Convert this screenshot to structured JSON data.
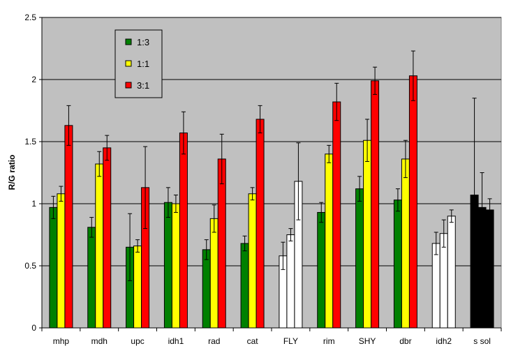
{
  "chart_data": {
    "type": "bar",
    "title": "",
    "xlabel": "",
    "ylabel": "R/G ratio",
    "ylim": [
      0,
      2.5
    ],
    "yticks": [
      0,
      0.5,
      1,
      1.5,
      2,
      2.5
    ],
    "ytick_labels": [
      "0",
      "0.5",
      "1",
      "1.5",
      "2",
      "2.5"
    ],
    "grid": true,
    "legend_position": "top-left",
    "background_color": "#c0c0c0",
    "categories": [
      "mhp",
      "mdh",
      "upc",
      "idh1",
      "rad",
      "cat",
      "FLY",
      "rim",
      "SHY",
      "dbr",
      "idh2",
      "s sol"
    ],
    "series": [
      {
        "name": "1:3",
        "color": "#008000",
        "values": [
          0.97,
          0.81,
          0.65,
          1.01,
          0.63,
          0.68,
          null,
          0.93,
          1.12,
          1.03,
          null,
          null
        ],
        "errors": [
          0.09,
          0.08,
          0.27,
          0.12,
          0.08,
          0.06,
          null,
          0.08,
          0.1,
          0.09,
          null,
          null
        ]
      },
      {
        "name": "1:1",
        "color": "#ffff00",
        "values": [
          1.08,
          1.32,
          0.66,
          1.0,
          0.88,
          1.08,
          null,
          1.4,
          1.51,
          1.36,
          null,
          null
        ],
        "errors": [
          0.06,
          0.1,
          0.05,
          0.07,
          0.11,
          0.05,
          null,
          0.07,
          0.17,
          0.15,
          null,
          null
        ]
      },
      {
        "name": "3:1",
        "color": "#ff0000",
        "values": [
          1.63,
          1.45,
          1.13,
          1.57,
          1.36,
          1.68,
          null,
          1.82,
          1.99,
          2.03,
          null,
          null
        ],
        "errors": [
          0.16,
          0.1,
          0.33,
          0.17,
          0.2,
          0.11,
          null,
          0.15,
          0.11,
          0.2,
          null,
          null
        ]
      },
      {
        "name": "FLY / idh2",
        "color": "#ffffff",
        "values": [
          null,
          null,
          null,
          null,
          null,
          null,
          [
            0.58,
            0.75,
            1.18
          ],
          null,
          null,
          null,
          [
            0.68,
            0.76,
            0.9
          ],
          null
        ],
        "errors": [
          null,
          null,
          null,
          null,
          null,
          null,
          [
            0.11,
            0.05,
            0.31
          ],
          null,
          null,
          null,
          [
            0.09,
            0.11,
            0.05
          ],
          null
        ]
      },
      {
        "name": "s sol",
        "color": "#000000",
        "values": [
          null,
          null,
          null,
          null,
          null,
          null,
          null,
          null,
          null,
          null,
          null,
          [
            1.07,
            0.97,
            0.95
          ]
        ],
        "errors": [
          null,
          null,
          null,
          null,
          null,
          null,
          null,
          null,
          null,
          null,
          null,
          [
            0.78,
            0.28,
            0.09
          ]
        ]
      }
    ],
    "legend": [
      "1:3",
      "1:1",
      "3:1"
    ]
  }
}
